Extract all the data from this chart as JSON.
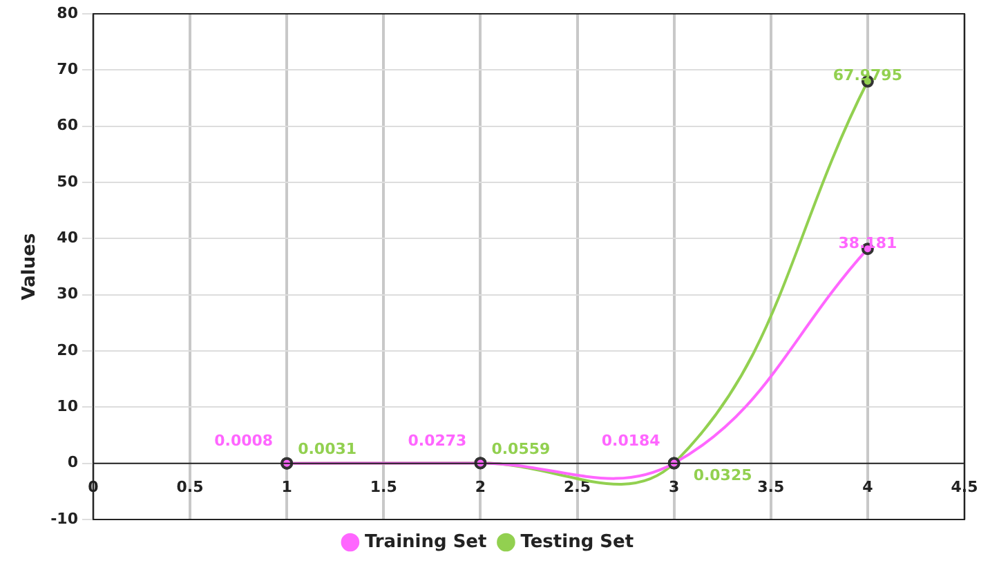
{
  "chart_data": {
    "type": "line",
    "ylabel": "Values",
    "x": [
      1,
      2,
      3,
      4
    ],
    "series": [
      {
        "name": "Training Set",
        "color": "#ff66ff",
        "values": [
          0.0008,
          0.0273,
          0.0184,
          38.181
        ]
      },
      {
        "name": "Testing Set",
        "color": "#92d050",
        "values": [
          0.0031,
          0.0559,
          0.0325,
          67.9795
        ]
      }
    ],
    "xlim": [
      0,
      4.5
    ],
    "xticks": [
      0,
      0.5,
      1,
      1.5,
      2,
      2.5,
      3,
      3.5,
      4,
      4.5
    ],
    "ylim": [
      -10,
      80
    ],
    "yticks": [
      -10,
      0,
      10,
      20,
      30,
      40,
      50,
      60,
      70,
      80
    ],
    "grid": true,
    "legend": "bottom",
    "marker": "circle",
    "data_labels": true
  }
}
